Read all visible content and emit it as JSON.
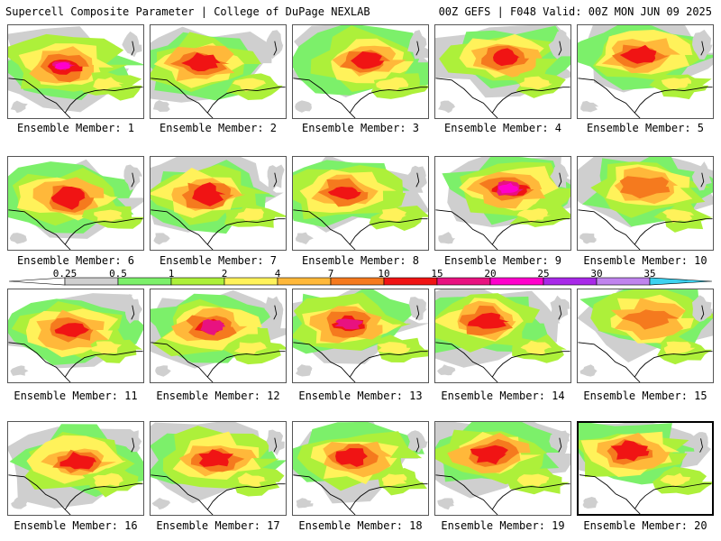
{
  "header": {
    "left": "Supercell Composite Parameter | College of DuPage NEXLAB",
    "right": "00Z GEFS | F048 Valid: 00Z MON JUN 09 2025"
  },
  "legend": {
    "levels": [
      "0.25",
      "0.5",
      "1",
      "2",
      "4",
      "7",
      "10",
      "15",
      "20",
      "25",
      "30",
      "35"
    ],
    "colors": [
      "#ffffff",
      "#cfcfcf",
      "#7cf06a",
      "#adf03a",
      "#fff25a",
      "#ffb83a",
      "#f57a1e",
      "#f01414",
      "#e81280",
      "#ff00cc",
      "#a828e8",
      "#c083ee",
      "#3cd2f0"
    ]
  },
  "members": [
    {
      "label": "Ensemble Member: 1",
      "peak": 20
    },
    {
      "label": "Ensemble Member: 2",
      "peak": 10
    },
    {
      "label": "Ensemble Member: 3",
      "peak": 10
    },
    {
      "label": "Ensemble Member: 4",
      "peak": 10
    },
    {
      "label": "Ensemble Member: 5",
      "peak": 10
    },
    {
      "label": "Ensemble Member: 6",
      "peak": 10
    },
    {
      "label": "Ensemble Member: 7",
      "peak": 10
    },
    {
      "label": "Ensemble Member: 8",
      "peak": 10
    },
    {
      "label": "Ensemble Member: 9",
      "peak": 20
    },
    {
      "label": "Ensemble Member: 10",
      "peak": 7
    },
    {
      "label": "Ensemble Member: 11",
      "peak": 10
    },
    {
      "label": "Ensemble Member: 12",
      "peak": 15
    },
    {
      "label": "Ensemble Member: 13",
      "peak": 15
    },
    {
      "label": "Ensemble Member: 14",
      "peak": 10
    },
    {
      "label": "Ensemble Member: 15",
      "peak": 7
    },
    {
      "label": "Ensemble Member: 16",
      "peak": 10
    },
    {
      "label": "Ensemble Member: 17",
      "peak": 10
    },
    {
      "label": "Ensemble Member: 18",
      "peak": 10
    },
    {
      "label": "Ensemble Member: 19",
      "peak": 10
    },
    {
      "label": "Ensemble Member: 20",
      "peak": 10,
      "selected": true
    }
  ]
}
